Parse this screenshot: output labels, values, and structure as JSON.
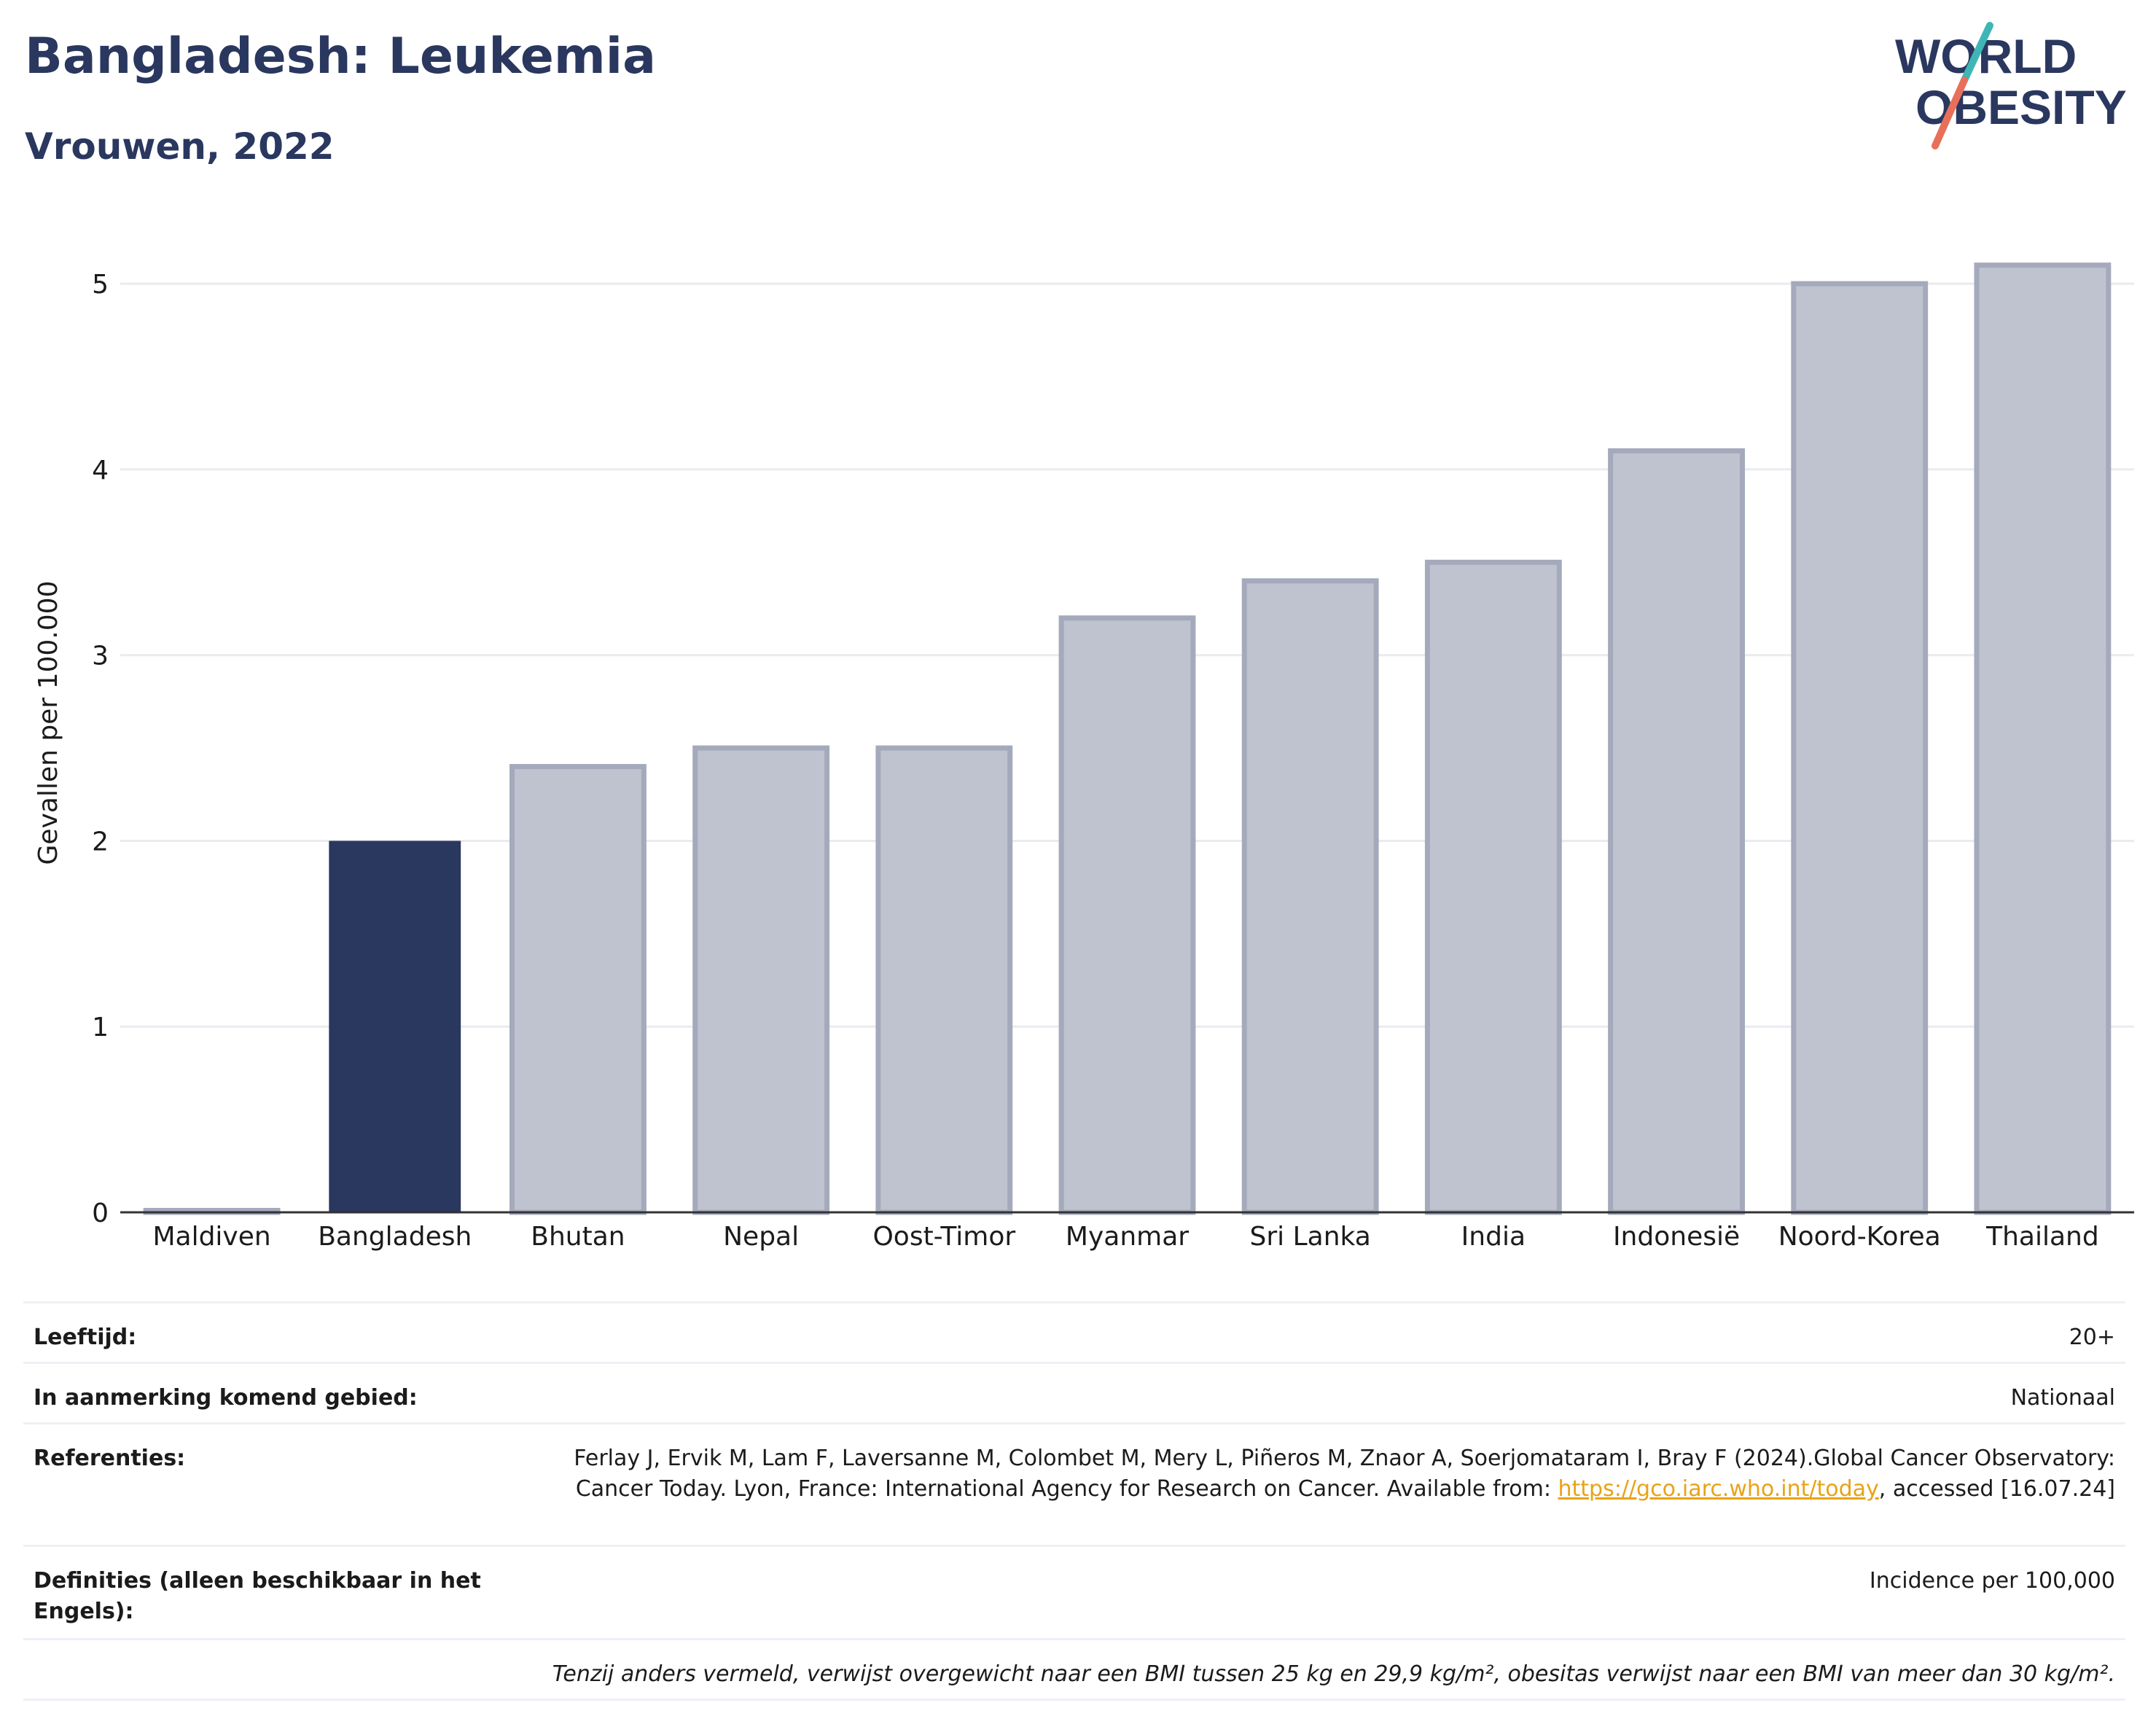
{
  "header": {
    "title": "Bangladesh: Leukemia",
    "subtitle": "Vrouwen, 2022"
  },
  "logo": {
    "line1": "WORLD",
    "line2": "OBESITY",
    "color_text": "#2a375f",
    "color_slash_top": "#3fb6b5",
    "color_slash_bottom": "#e8705a"
  },
  "chart_data": {
    "type": "bar",
    "categories": [
      "Maldiven",
      "Bangladesh",
      "Bhutan",
      "Nepal",
      "Oost-Timor",
      "Myanmar",
      "Sri Lanka",
      "India",
      "Indonesië",
      "Noord-Korea",
      "Thailand"
    ],
    "values": [
      0.01,
      2.0,
      2.4,
      2.5,
      2.5,
      3.2,
      3.4,
      3.5,
      4.1,
      5.0,
      5.1
    ],
    "highlight": "Bangladesh",
    "ylabel": "Gevallen per 100.000",
    "xlabel": "",
    "ylim": [
      0,
      5.35
    ],
    "yticks": [
      0,
      1,
      2,
      3,
      4,
      5
    ],
    "grid": true,
    "colors": {
      "highlight": "#2a375f",
      "other": "#bfc3cf",
      "other_border": "#a4aabb"
    }
  },
  "info": {
    "age_label": "Leeftijd:",
    "age_value": "20+",
    "area_label": "In aanmerking komend gebied:",
    "area_value": "Nationaal",
    "ref_label": "Referenties:",
    "ref_text_1": "Ferlay J, Ervik M, Lam F, Laversanne M, Colombet M, Mery L, Piñeros M, Znaor A, Soerjomataram I, Bray F (2024).Global Cancer Observatory: Cancer Today. Lyon, France: International Agency for Research on Cancer. Available from: ",
    "ref_link": "https://gco.iarc.who.int/today",
    "ref_text_2": ", accessed [16.07.24]",
    "def_label": "Definities (alleen beschikbaar in het Engels):",
    "def_value": "Incidence per 100,000",
    "footnote": "Tenzij anders vermeld, verwijst overgewicht naar een BMI tussen 25 kg en 29,9 kg/m², obesitas verwijst naar een BMI van meer dan 30 kg/m²."
  }
}
